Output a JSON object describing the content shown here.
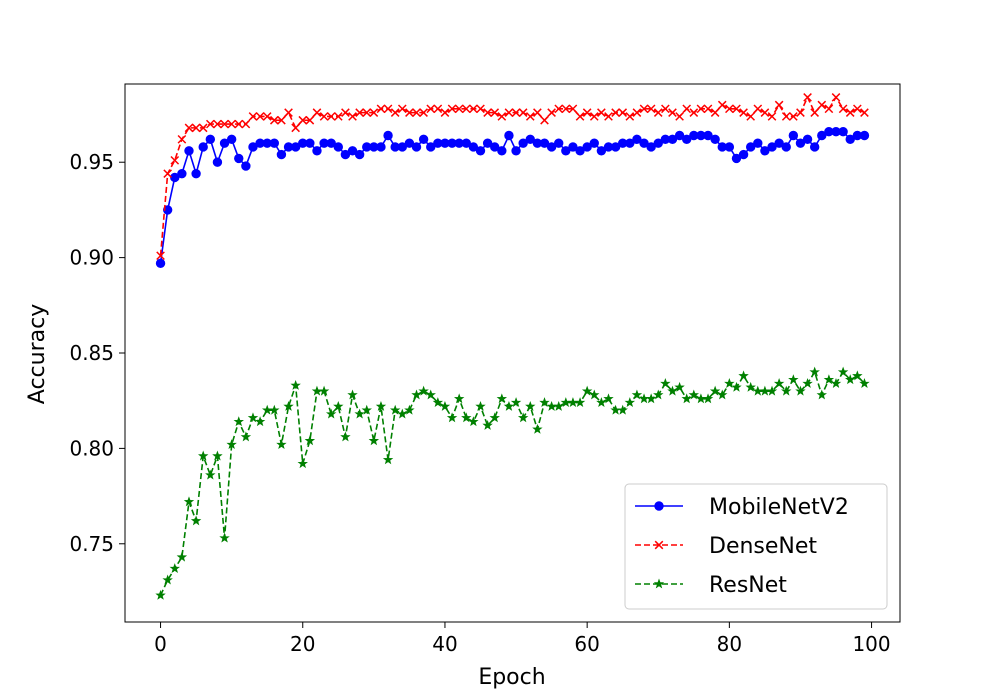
{
  "chart_data": {
    "type": "line",
    "xlabel": "Epoch",
    "ylabel": "Accuracy",
    "xlim": [
      -5,
      104
    ],
    "ylim": [
      0.709,
      0.991
    ],
    "xticks": [
      0,
      20,
      40,
      60,
      80,
      100
    ],
    "xtick_labels": [
      "0",
      "20",
      "40",
      "60",
      "80",
      "100"
    ],
    "yticks": [
      0.75,
      0.8,
      0.85,
      0.9,
      0.95
    ],
    "ytick_labels": [
      "0.75",
      "0.80",
      "0.85",
      "0.90",
      "0.95"
    ],
    "grid": false,
    "legend_position": "lower-right",
    "series": [
      {
        "name": "MobileNetV2",
        "color": "#0000ff",
        "linestyle": "solid",
        "marker": "circle",
        "x": [
          0,
          1,
          2,
          3,
          4,
          5,
          6,
          7,
          8,
          9,
          10,
          11,
          12,
          13,
          14,
          15,
          16,
          17,
          18,
          19,
          20,
          21,
          22,
          23,
          24,
          25,
          26,
          27,
          28,
          29,
          30,
          31,
          32,
          33,
          34,
          35,
          36,
          37,
          38,
          39,
          40,
          41,
          42,
          43,
          44,
          45,
          46,
          47,
          48,
          49,
          50,
          51,
          52,
          53,
          54,
          55,
          56,
          57,
          58,
          59,
          60,
          61,
          62,
          63,
          64,
          65,
          66,
          67,
          68,
          69,
          70,
          71,
          72,
          73,
          74,
          75,
          76,
          77,
          78,
          79,
          80,
          81,
          82,
          83,
          84,
          85,
          86,
          87,
          88,
          89,
          90,
          91,
          92,
          93,
          94,
          95,
          96,
          97,
          98,
          99
        ],
        "values": [
          0.897,
          0.925,
          0.942,
          0.944,
          0.956,
          0.944,
          0.958,
          0.962,
          0.95,
          0.96,
          0.962,
          0.952,
          0.948,
          0.958,
          0.96,
          0.96,
          0.96,
          0.954,
          0.958,
          0.958,
          0.96,
          0.96,
          0.956,
          0.96,
          0.96,
          0.958,
          0.954,
          0.956,
          0.954,
          0.958,
          0.958,
          0.958,
          0.964,
          0.958,
          0.958,
          0.96,
          0.958,
          0.962,
          0.958,
          0.96,
          0.96,
          0.96,
          0.96,
          0.96,
          0.958,
          0.956,
          0.96,
          0.958,
          0.956,
          0.964,
          0.956,
          0.96,
          0.962,
          0.96,
          0.96,
          0.958,
          0.96,
          0.956,
          0.958,
          0.956,
          0.958,
          0.96,
          0.956,
          0.958,
          0.958,
          0.96,
          0.96,
          0.962,
          0.96,
          0.958,
          0.96,
          0.962,
          0.962,
          0.964,
          0.962,
          0.964,
          0.964,
          0.964,
          0.962,
          0.958,
          0.958,
          0.952,
          0.954,
          0.958,
          0.96,
          0.956,
          0.958,
          0.96,
          0.958,
          0.964,
          0.96,
          0.962,
          0.958,
          0.964,
          0.966,
          0.966,
          0.966,
          0.962,
          0.964,
          0.964
        ]
      },
      {
        "name": "DenseNet",
        "color": "#ff0000",
        "linestyle": "dashed",
        "marker": "x",
        "x": [
          0,
          1,
          2,
          3,
          4,
          5,
          6,
          7,
          8,
          9,
          10,
          11,
          12,
          13,
          14,
          15,
          16,
          17,
          18,
          19,
          20,
          21,
          22,
          23,
          24,
          25,
          26,
          27,
          28,
          29,
          30,
          31,
          32,
          33,
          34,
          35,
          36,
          37,
          38,
          39,
          40,
          41,
          42,
          43,
          44,
          45,
          46,
          47,
          48,
          49,
          50,
          51,
          52,
          53,
          54,
          55,
          56,
          57,
          58,
          59,
          60,
          61,
          62,
          63,
          64,
          65,
          66,
          67,
          68,
          69,
          70,
          71,
          72,
          73,
          74,
          75,
          76,
          77,
          78,
          79,
          80,
          81,
          82,
          83,
          84,
          85,
          86,
          87,
          88,
          89,
          90,
          91,
          92,
          93,
          94,
          95,
          96,
          97,
          98,
          99
        ],
        "values": [
          0.901,
          0.944,
          0.951,
          0.962,
          0.968,
          0.968,
          0.968,
          0.97,
          0.97,
          0.97,
          0.97,
          0.97,
          0.97,
          0.974,
          0.974,
          0.974,
          0.972,
          0.972,
          0.976,
          0.968,
          0.972,
          0.972,
          0.976,
          0.974,
          0.974,
          0.974,
          0.976,
          0.974,
          0.976,
          0.976,
          0.976,
          0.978,
          0.978,
          0.976,
          0.978,
          0.976,
          0.976,
          0.976,
          0.978,
          0.978,
          0.976,
          0.978,
          0.978,
          0.978,
          0.978,
          0.978,
          0.976,
          0.976,
          0.974,
          0.976,
          0.976,
          0.976,
          0.974,
          0.976,
          0.972,
          0.976,
          0.978,
          0.978,
          0.978,
          0.974,
          0.976,
          0.974,
          0.976,
          0.974,
          0.976,
          0.976,
          0.974,
          0.976,
          0.978,
          0.978,
          0.976,
          0.978,
          0.976,
          0.974,
          0.978,
          0.976,
          0.978,
          0.978,
          0.976,
          0.98,
          0.978,
          0.978,
          0.976,
          0.974,
          0.978,
          0.976,
          0.974,
          0.98,
          0.974,
          0.974,
          0.976,
          0.984,
          0.976,
          0.98,
          0.978,
          0.984,
          0.978,
          0.976,
          0.978,
          0.976
        ]
      },
      {
        "name": "ResNet",
        "color": "#008000",
        "linestyle": "dashed",
        "marker": "star",
        "x": [
          0,
          1,
          2,
          3,
          4,
          5,
          6,
          7,
          8,
          9,
          10,
          11,
          12,
          13,
          14,
          15,
          16,
          17,
          18,
          19,
          20,
          21,
          22,
          23,
          24,
          25,
          26,
          27,
          28,
          29,
          30,
          31,
          32,
          33,
          34,
          35,
          36,
          37,
          38,
          39,
          40,
          41,
          42,
          43,
          44,
          45,
          46,
          47,
          48,
          49,
          50,
          51,
          52,
          53,
          54,
          55,
          56,
          57,
          58,
          59,
          60,
          61,
          62,
          63,
          64,
          65,
          66,
          67,
          68,
          69,
          70,
          71,
          72,
          73,
          74,
          75,
          76,
          77,
          78,
          79,
          80,
          81,
          82,
          83,
          84,
          85,
          86,
          87,
          88,
          89,
          90,
          91,
          92,
          93,
          94,
          95,
          96,
          97,
          98,
          99
        ],
        "values": [
          0.723,
          0.731,
          0.737,
          0.743,
          0.772,
          0.762,
          0.796,
          0.786,
          0.796,
          0.753,
          0.802,
          0.814,
          0.806,
          0.816,
          0.814,
          0.82,
          0.82,
          0.802,
          0.822,
          0.833,
          0.792,
          0.804,
          0.83,
          0.83,
          0.818,
          0.822,
          0.806,
          0.828,
          0.818,
          0.82,
          0.804,
          0.822,
          0.794,
          0.82,
          0.818,
          0.82,
          0.828,
          0.83,
          0.828,
          0.824,
          0.822,
          0.816,
          0.826,
          0.816,
          0.814,
          0.822,
          0.812,
          0.816,
          0.826,
          0.822,
          0.824,
          0.816,
          0.822,
          0.81,
          0.824,
          0.822,
          0.822,
          0.824,
          0.824,
          0.824,
          0.83,
          0.828,
          0.824,
          0.826,
          0.82,
          0.82,
          0.824,
          0.828,
          0.826,
          0.826,
          0.828,
          0.834,
          0.83,
          0.832,
          0.826,
          0.828,
          0.826,
          0.826,
          0.83,
          0.828,
          0.834,
          0.832,
          0.838,
          0.832,
          0.83,
          0.83,
          0.83,
          0.834,
          0.83,
          0.836,
          0.83,
          0.834,
          0.84,
          0.828,
          0.836,
          0.834,
          0.84,
          0.836,
          0.838,
          0.834
        ]
      }
    ]
  }
}
